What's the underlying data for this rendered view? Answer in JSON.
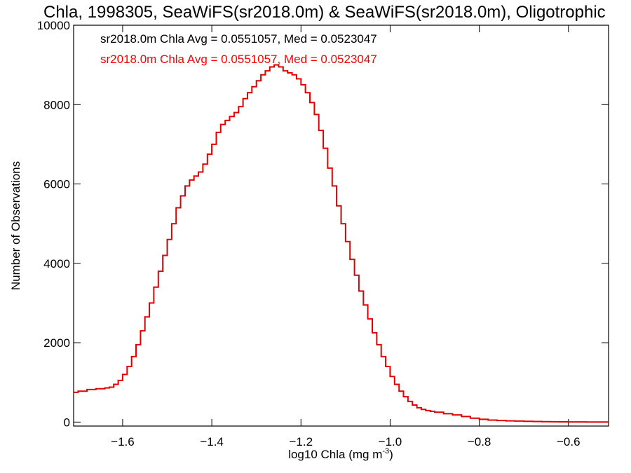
{
  "chart_data": {
    "type": "line",
    "title": "Chla, 1998305, SeaWiFS(sr2018.0m) & SeaWiFS(sr2018.0m), Oligotrophic",
    "xlabel": "log10 Chla (mg m",
    "xlabel_superscript": "-3",
    "xlabel_suffix": ")",
    "ylabel": "Number of Observations",
    "xlim": [
      -1.71,
      -0.51
    ],
    "ylim": [
      -100,
      10000
    ],
    "xticks": [
      -1.6,
      -1.4,
      -1.2,
      -1.0,
      -0.8,
      -0.6
    ],
    "xtick_labels": [
      "−1.6",
      "−1.4",
      "−1.2",
      "−1.0",
      "−0.8",
      "−0.6"
    ],
    "yticks": [
      0,
      2000,
      4000,
      6000,
      8000,
      10000
    ],
    "ytick_labels": [
      "0",
      "2000",
      "4000",
      "6000",
      "8000",
      "10000"
    ],
    "grid": false,
    "annotations": [
      {
        "text": "sr2018.0m Chla Avg = 0.0551057, Med = 0.0523047",
        "color": "#000000"
      },
      {
        "text": "sr2018.0m Chla Avg = 0.0551057, Med = 0.0523047",
        "color": "#ff0000"
      }
    ],
    "series_color": "#e00000",
    "x": [
      -1.71,
      -1.7,
      -1.68,
      -1.66,
      -1.64,
      -1.63,
      -1.62,
      -1.61,
      -1.6,
      -1.59,
      -1.58,
      -1.57,
      -1.56,
      -1.55,
      -1.54,
      -1.53,
      -1.52,
      -1.51,
      -1.5,
      -1.49,
      -1.48,
      -1.47,
      -1.46,
      -1.45,
      -1.44,
      -1.43,
      -1.42,
      -1.41,
      -1.4,
      -1.39,
      -1.38,
      -1.37,
      -1.36,
      -1.35,
      -1.34,
      -1.33,
      -1.32,
      -1.31,
      -1.3,
      -1.29,
      -1.28,
      -1.27,
      -1.26,
      -1.25,
      -1.24,
      -1.23,
      -1.22,
      -1.21,
      -1.2,
      -1.19,
      -1.18,
      -1.17,
      -1.16,
      -1.15,
      -1.14,
      -1.13,
      -1.12,
      -1.11,
      -1.1,
      -1.09,
      -1.08,
      -1.07,
      -1.06,
      -1.05,
      -1.04,
      -1.03,
      -1.02,
      -1.01,
      -1.0,
      -0.99,
      -0.98,
      -0.97,
      -0.96,
      -0.95,
      -0.94,
      -0.93,
      -0.92,
      -0.91,
      -0.9,
      -0.88,
      -0.86,
      -0.84,
      -0.82,
      -0.8,
      -0.78,
      -0.76,
      -0.74,
      -0.72,
      -0.7,
      -0.68,
      -0.66,
      -0.64,
      -0.62,
      -0.6,
      -0.58,
      -0.56,
      -0.54,
      -0.52
    ],
    "values": [
      750,
      780,
      820,
      840,
      860,
      880,
      950,
      1050,
      1200,
      1400,
      1650,
      1950,
      2300,
      2650,
      3000,
      3400,
      3800,
      4200,
      4600,
      5000,
      5400,
      5700,
      5950,
      6100,
      6200,
      6300,
      6500,
      6750,
      7000,
      7300,
      7500,
      7600,
      7700,
      7800,
      7950,
      8150,
      8300,
      8450,
      8600,
      8750,
      8850,
      8950,
      9000,
      8950,
      8850,
      8800,
      8750,
      8650,
      8500,
      8300,
      8050,
      7750,
      7350,
      6900,
      6400,
      5950,
      5450,
      5000,
      4550,
      4100,
      3700,
      3300,
      2950,
      2600,
      2250,
      1950,
      1650,
      1400,
      1150,
      950,
      780,
      640,
      520,
      430,
      360,
      320,
      290,
      270,
      250,
      210,
      180,
      140,
      100,
      70,
      50,
      40,
      30,
      25,
      20,
      15,
      10,
      8,
      6,
      5,
      4,
      3,
      2,
      2
    ]
  }
}
